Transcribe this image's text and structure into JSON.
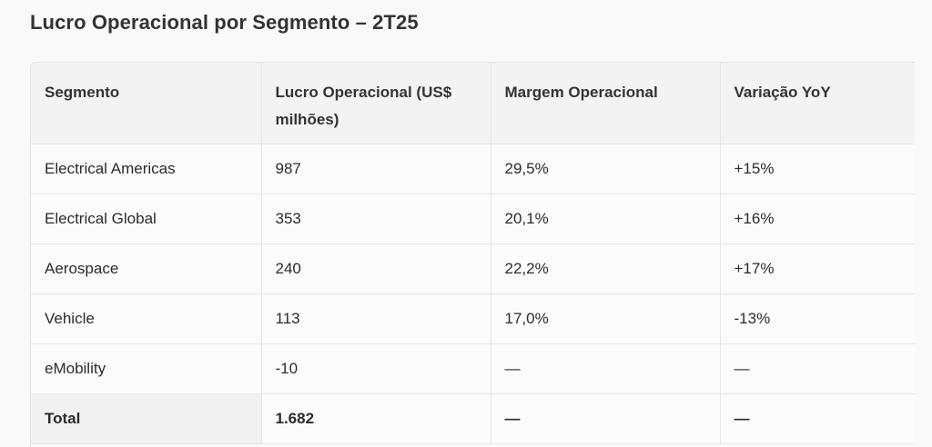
{
  "header": {
    "title": "Lucro Operacional por Segmento – 2T25"
  },
  "table": {
    "columns": [
      "Segmento",
      "Lucro Operacional (US$ milhões)",
      "Margem Operacional",
      "Variação YoY"
    ],
    "rows": [
      [
        "Electrical Americas",
        "987",
        "29,5%",
        "+15%"
      ],
      [
        "Electrical Global",
        "353",
        "20,1%",
        "+16%"
      ],
      [
        "Aerospace",
        "240",
        "22,2%",
        "+17%"
      ],
      [
        "Vehicle",
        "113",
        "17,0%",
        "-13%"
      ],
      [
        "eMobility",
        "-10",
        "—",
        "—"
      ]
    ],
    "total": [
      "Total",
      "1.682",
      "—",
      "—"
    ]
  }
}
